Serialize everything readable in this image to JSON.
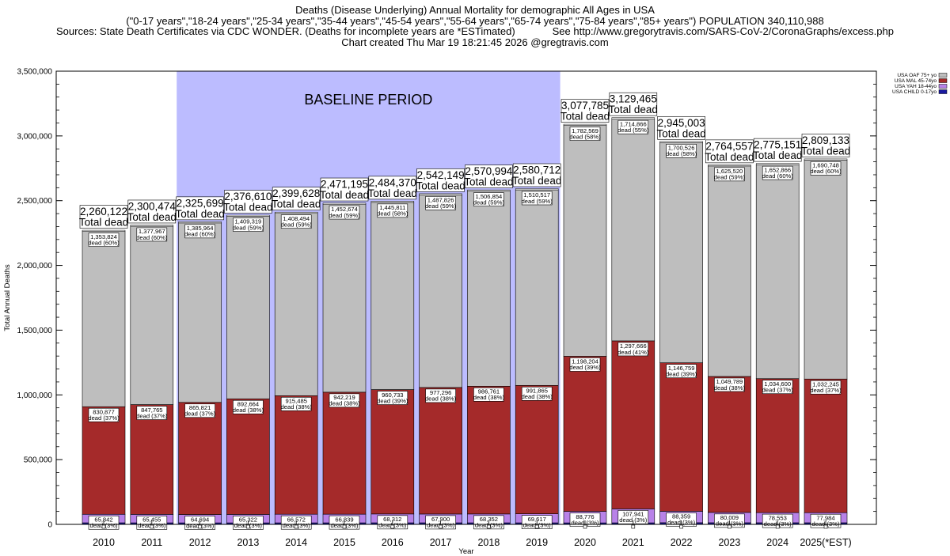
{
  "chart_data": {
    "type": "bar",
    "stacked": true,
    "title": "Deaths (Disease Underlying) Annual Mortality for demographic All Ages in USA",
    "subtitle_lines": [
      "(\"0-17 years\",\"18-24 years\",\"25-34 years\",\"35-44 years\",\"45-54 years\",\"55-64 years\",\"65-74 years\",\"75-84 years\",\"85+ years\") POPULATION 340,110,988",
      "Sources: State Death Certificates via CDC WONDER. (Deaths for incomplete years are *ESTimated)             See http://www.gregorytravis.com/SARS-CoV-2/CoronaGraphs/excess.php",
      "Chart created Thu Mar 19 18:21:45 2026 @gregtravis.com"
    ],
    "xlabel": "Year",
    "ylabel": "Total Annual Deaths",
    "ylim": [
      0,
      3500000
    ],
    "yticks": [
      0,
      500000,
      1000000,
      1500000,
      2000000,
      2500000,
      3000000,
      3500000
    ],
    "ytick_labels": [
      "0",
      "500,000",
      "1,000,000",
      "1,500,000",
      "2,000,000",
      "2,500,000",
      "3,000,000",
      "3,500,000"
    ],
    "categories": [
      "2010",
      "2011",
      "2012",
      "2013",
      "2014",
      "2015",
      "2016",
      "2017",
      "2018",
      "2019",
      "2020",
      "2021",
      "2022",
      "2023",
      "2024",
      "2025(*EST)"
    ],
    "baseline": {
      "label": "BASELINE PERIOD",
      "from": "2012",
      "to": "2019",
      "color": "#bcbcff"
    },
    "total_suffix": "Total dead",
    "totals": [
      2260122,
      2300474,
      2325699,
      2376610,
      2399628,
      2471195,
      2484370,
      2542149,
      2570994,
      2580712,
      3077785,
      3129465,
      2945003,
      2764557,
      2775151,
      2809133
    ],
    "total_labels": [
      "2,260,122",
      "2,300,474",
      "2,325,699",
      "2,376,610",
      "2,399,628",
      "2,471,195",
      "2,484,370",
      "2,542,149",
      "2,570,994",
      "2,580,712",
      "3,077,785",
      "3,129,465",
      "2,945,003",
      "2,764,557",
      "2,775,151",
      "2,809,133"
    ],
    "series": [
      {
        "name": "USA CHILD 0-17yo",
        "color": "#1a1aa0",
        "values": [
          12000,
          11800,
          11600,
          11600,
          11700,
          11800,
          12000,
          12000,
          11900,
          11800,
          11500,
          11800,
          12800,
          12500,
          12400,
          12300
        ]
      },
      {
        "name": "USA YAH 18-44yo",
        "color": "#b882e8",
        "values": [
          65842,
          65455,
          64694,
          65322,
          66572,
          66839,
          68312,
          67900,
          68352,
          69617,
          88776,
          107941,
          88359,
          80009,
          78553,
          77984
        ],
        "labels": [
          "65,842",
          "65,455",
          "64,694",
          "65,322",
          "66,572",
          "66,839",
          "68,312",
          "67,900",
          "68,352",
          "69,617",
          "88,776",
          "107,941",
          "88,359",
          "80,009",
          "78,553",
          "77,984"
        ],
        "pcts": [
          "dead (3%)",
          "dead (3%)",
          "dead (3%)",
          "dead (3%)",
          "dead (3%)",
          "dead (3%)",
          "dead (3%)",
          "dead (3%)",
          "dead (3%)",
          "dead (3%)",
          "dead (3%)",
          "dead (3%)",
          "dead (3%)",
          "dead (3%)",
          "dead (3%)",
          "dead (3%)"
        ]
      },
      {
        "name": "USA MAL 45-74yo",
        "color": "#a52a2a",
        "values": [
          830877,
          847765,
          865821,
          892664,
          915485,
          942219,
          960733,
          977296,
          986761,
          991865,
          1198204,
          1297666,
          1146759,
          1049789,
          1034600,
          1032245
        ],
        "labels": [
          "830,877",
          "847,765",
          "865,821",
          "892,664",
          "915,485",
          "942,219",
          "960,733",
          "977,296",
          "986,761",
          "991,865",
          "1,198,204",
          "1,297,666",
          "1,146,759",
          "1,049,789",
          "1,034,600",
          "1,032,245"
        ],
        "pcts": [
          "dead (37%)",
          "dead (37%)",
          "dead (37%)",
          "dead (38%)",
          "dead (38%)",
          "dead (38%)",
          "dead (39%)",
          "dead (38%)",
          "dead (38%)",
          "dead (38%)",
          "dead (39%)",
          "dead (41%)",
          "dead (39%)",
          "dead (38%)",
          "dead (37%)",
          "dead (37%)"
        ]
      },
      {
        "name": "USA OAF 75+ yo",
        "color": "#bebebe",
        "values": [
          1353824,
          1377967,
          1385964,
          1409319,
          1408494,
          1452674,
          1445811,
          1487826,
          1506854,
          1510517,
          1782569,
          1714866,
          1700526,
          1625520,
          1652866,
          1690748
        ],
        "labels": [
          "1,353,824",
          "1,377,967",
          "1,385,964",
          "1,409,319",
          "1,408,494",
          "1,452,674",
          "1,445,811",
          "1,487,826",
          "1,506,854",
          "1,510,517",
          "1,782,569",
          "1,714,866",
          "1,700,526",
          "1,625,520",
          "1,652,866",
          "1,690,748"
        ],
        "pcts": [
          "dead (60%)",
          "dead (60%)",
          "dead (60%)",
          "dead (59%)",
          "dead (59%)",
          "dead (59%)",
          "dead (58%)",
          "dead (59%)",
          "dead (59%)",
          "dead (59%)",
          "dead (58%)",
          "dead (55%)",
          "dead (58%)",
          "dead (59%)",
          "dead (60%)",
          "dead (60%)"
        ]
      }
    ],
    "legend": {
      "position": "top-right",
      "entries": [
        "USA OAF 75+ yo",
        "USA MAL 45-74yo",
        "USA YAH 18-44yo",
        "USA CHILD 0-17yo"
      ]
    },
    "grid": false
  }
}
